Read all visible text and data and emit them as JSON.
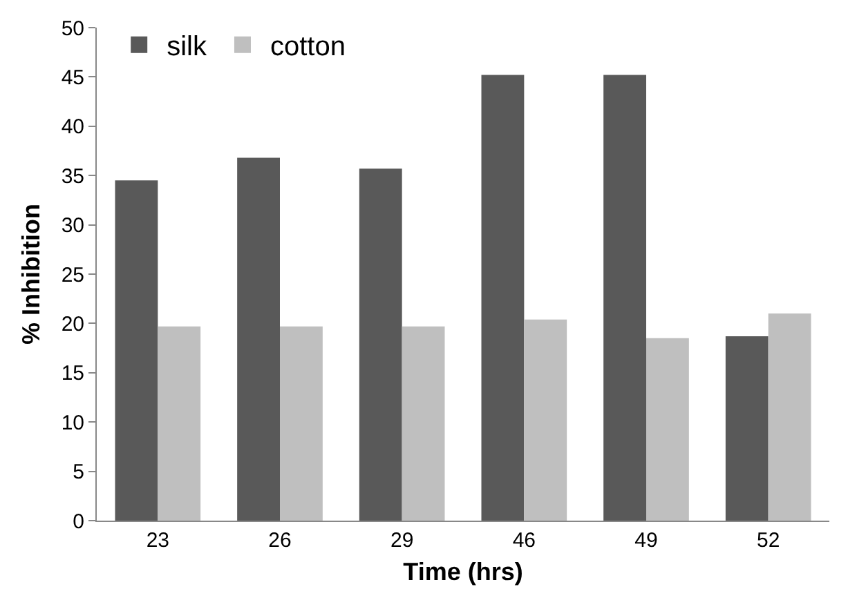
{
  "chart_data": {
    "type": "bar",
    "xlabel": "Time (hrs)",
    "ylabel": "% Inhibition",
    "categories": [
      "23",
      "26",
      "29",
      "46",
      "49",
      "52"
    ],
    "series": [
      {
        "name": "silk",
        "color": "#595959",
        "values": [
          34.5,
          36.8,
          35.7,
          45.2,
          45.2,
          18.7
        ]
      },
      {
        "name": "cotton",
        "color": "#bfbfbf",
        "values": [
          19.7,
          19.7,
          19.7,
          20.4,
          18.5,
          21.0
        ]
      }
    ],
    "ylim": [
      0,
      50
    ],
    "yticks": [
      0,
      5,
      10,
      15,
      20,
      25,
      30,
      35,
      40,
      45,
      50
    ],
    "grid": false,
    "legend": "top left"
  }
}
